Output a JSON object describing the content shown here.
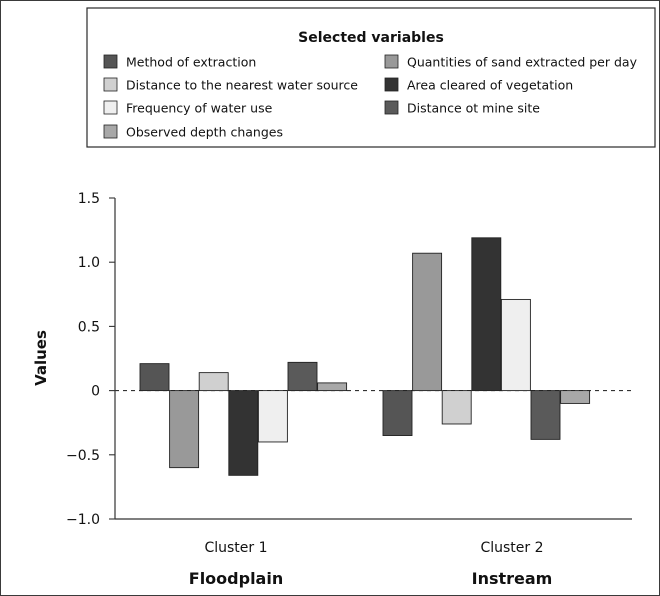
{
  "chart_data": {
    "type": "bar",
    "legend": {
      "title": "Selected variables",
      "placement": "top"
    },
    "ylabel": "Values",
    "ylim": [
      -1.0,
      1.5
    ],
    "yticks": [
      -1.0,
      -0.5,
      0,
      0.5,
      1.0,
      1.5
    ],
    "ytick_labels": [
      "−1.0",
      "−0.5",
      "0",
      "0.5",
      "1.0",
      "1.5"
    ],
    "zero_line": "dashed",
    "categories": [
      "Cluster 1",
      "Cluster 2"
    ],
    "group_labels": [
      "Floodplain",
      "Instream"
    ],
    "series": [
      {
        "name": "Method of extraction",
        "color": "#555555",
        "values": [
          0.21,
          -0.35
        ]
      },
      {
        "name": "Quantities of sand extracted per day",
        "color": "#999999",
        "values": [
          -0.6,
          1.07
        ]
      },
      {
        "name": "Distance to the nearest water source",
        "color": "#d0d0d0",
        "values": [
          0.14,
          -0.26
        ]
      },
      {
        "name": "Area cleared of vegetation",
        "color": "#333333",
        "values": [
          -0.66,
          1.19
        ]
      },
      {
        "name": "Frequency of water use",
        "color": "#efefef",
        "values": [
          -0.4,
          0.71
        ]
      },
      {
        "name": "Distance ot mine site",
        "color": "#5a5a5a",
        "values": [
          0.22,
          -0.38
        ]
      },
      {
        "name": "Observed depth changes",
        "color": "#a8a8a8",
        "values": [
          0.06,
          -0.1
        ]
      }
    ]
  }
}
